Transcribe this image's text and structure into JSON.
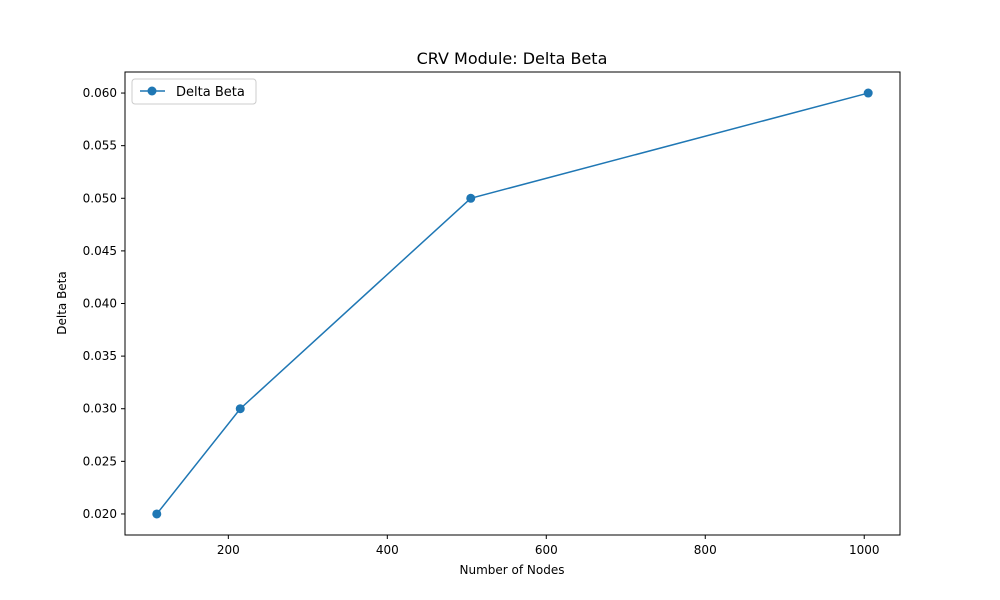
{
  "chart_data": {
    "type": "line",
    "title": "CRV Module: Delta Beta",
    "xlabel": "Number of Nodes",
    "ylabel": "Delta Beta",
    "xlim": [
      70,
      1045
    ],
    "ylim": [
      0.018,
      0.062
    ],
    "xticks": [
      200,
      400,
      600,
      800,
      1000
    ],
    "yticks": [
      0.02,
      0.025,
      0.03,
      0.035,
      0.04,
      0.045,
      0.05,
      0.055,
      0.06
    ],
    "xtick_labels": [
      "200",
      "400",
      "600",
      "800",
      "1000"
    ],
    "ytick_labels": [
      "0.020",
      "0.025",
      "0.030",
      "0.035",
      "0.040",
      "0.045",
      "0.050",
      "0.055",
      "0.060"
    ],
    "grid": false,
    "legend_position": "upper-left",
    "series": [
      {
        "name": "Delta Beta",
        "color": "#1f77b4",
        "marker": "circle",
        "x": [
          110,
          215,
          505,
          1005
        ],
        "y": [
          0.02,
          0.03,
          0.05,
          0.06
        ]
      }
    ]
  }
}
